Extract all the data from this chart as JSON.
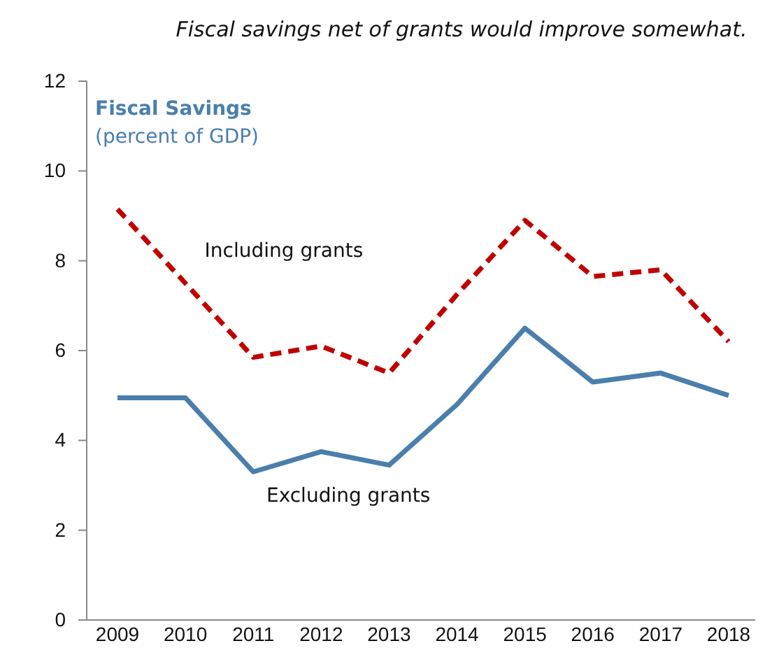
{
  "chart_data": {
    "type": "line",
    "title": "Fiscal savings net of grants would improve somewhat.",
    "annotations": [
      "Fiscal Savings",
      "(percent of GDP)"
    ],
    "categories": [
      "2009",
      "2010",
      "2011",
      "2012",
      "2013",
      "2014",
      "2015",
      "2016",
      "2017",
      "2018"
    ],
    "series": [
      {
        "name": "Including grants",
        "color": "#c00000",
        "line_style": "dashed",
        "values": [
          9.15,
          7.5,
          5.85,
          6.1,
          5.5,
          7.25,
          8.9,
          7.65,
          7.8,
          6.2
        ]
      },
      {
        "name": "Excluding grants",
        "color": "#4a7fad",
        "line_style": "solid",
        "values": [
          4.95,
          4.95,
          3.3,
          3.75,
          3.45,
          4.8,
          6.5,
          5.3,
          5.5,
          5.0
        ]
      }
    ],
    "ylim": [
      0,
      12
    ],
    "yticks": [
      0,
      2,
      4,
      6,
      8,
      10,
      12
    ],
    "grid": false,
    "legend": false,
    "marker": "none"
  }
}
